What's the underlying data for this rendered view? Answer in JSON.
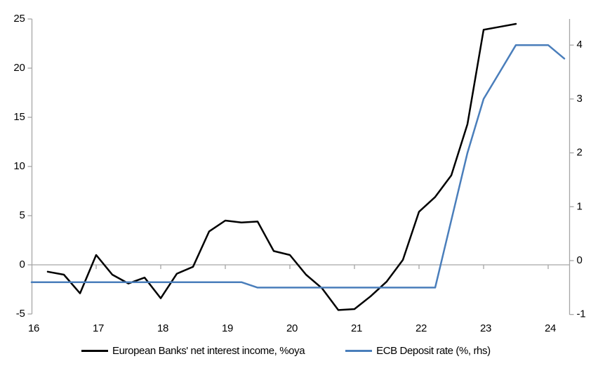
{
  "chart_data": {
    "type": "line",
    "title": "",
    "grid": "zero-line-only",
    "legend_position": "bottom",
    "x_axis": {
      "tick_labels": [
        "16",
        "17",
        "18",
        "19",
        "20",
        "21",
        "22",
        "23",
        "24"
      ],
      "tick_values": [
        16,
        17,
        18,
        19,
        20,
        21,
        22,
        23,
        24
      ],
      "range": [
        16,
        24.35
      ]
    },
    "left_axis": {
      "tick_labels": [
        "25",
        "20",
        "15",
        "10",
        "5",
        "0",
        "-5"
      ],
      "tick_values": [
        25,
        20,
        15,
        10,
        5,
        0,
        -5
      ],
      "range": [
        -5,
        25
      ]
    },
    "right_axis": {
      "tick_labels": [
        "4",
        "3",
        "2",
        "1",
        "0",
        "-1"
      ],
      "tick_values": [
        4,
        3,
        2,
        1,
        0,
        -1
      ],
      "range": [
        -1,
        4.5
      ]
    },
    "series": [
      {
        "name": "European Banks' net interest income, %oya",
        "axis": "left",
        "color": "#000000",
        "stroke_width": 2.5,
        "x_start": 16.25,
        "x_step": 0.25,
        "values": [
          -0.7,
          -1.0,
          -2.9,
          1.0,
          -1.0,
          -1.9,
          -1.3,
          -3.4,
          -0.9,
          -0.2,
          3.4,
          4.5,
          4.3,
          4.4,
          1.4,
          1.0,
          -1.0,
          -2.4,
          -4.6,
          -4.5,
          -3.2,
          -1.7,
          0.5,
          5.4,
          6.9,
          9.1,
          14.3,
          23.9,
          24.2,
          24.5
        ]
      },
      {
        "name": "ECB Deposit rate (%, rhs)",
        "axis": "right",
        "color": "#4a7ebb",
        "stroke_width": 2.5,
        "x_start": 16.0,
        "x_step": 0.25,
        "values": [
          -0.4,
          -0.4,
          -0.4,
          -0.4,
          -0.4,
          -0.4,
          -0.4,
          -0.4,
          -0.4,
          -0.4,
          -0.4,
          -0.4,
          -0.4,
          -0.4,
          -0.5,
          -0.5,
          -0.5,
          -0.5,
          -0.5,
          -0.5,
          -0.5,
          -0.5,
          -0.5,
          -0.5,
          -0.5,
          -0.5,
          0.75,
          2.0,
          3.0,
          3.5,
          4.0,
          4.0,
          4.0,
          3.75
        ]
      }
    ]
  },
  "colors": {
    "axis_line": "#a6a6a6",
    "zero_gridline": "#a6a6a6",
    "background": "#ffffff",
    "text": "#000000"
  }
}
